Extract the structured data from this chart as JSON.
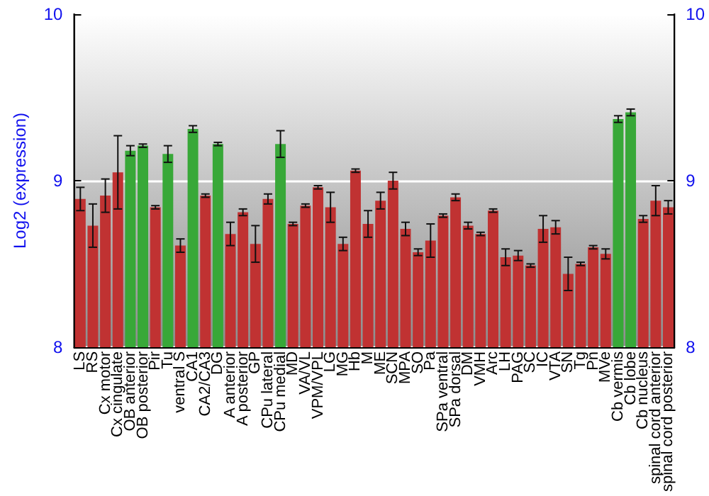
{
  "chart_data": {
    "type": "bar",
    "ylabel": "Log2 (expression)",
    "categories": [
      "LS",
      "RS",
      "Cx motor",
      "Cx cingulate",
      "OB anterior",
      "OB posterior",
      "Pir",
      "Tu",
      "ventral S",
      "CA1",
      "CA2/CA3",
      "DG",
      "A anterior",
      "A posterior",
      "GP",
      "CPu lateral",
      "CPu medial",
      "MD",
      "VA/VL",
      "VPM/VPL",
      "LG",
      "MG",
      "Hb",
      "M",
      "ME",
      "SCN",
      "MPA",
      "SO",
      "Pa",
      "SPa ventral",
      "SPa dorsal",
      "DM",
      "VMH",
      "Arc",
      "LH",
      "PAG",
      "SC",
      "IC",
      "VTA",
      "SN",
      "Tg",
      "Pn",
      "MVe",
      "Cb vermis",
      "Cb lobe",
      "Cb nucleus",
      "spinal cord anterior",
      "spinal cord posterior"
    ],
    "values": [
      8.89,
      8.73,
      8.91,
      9.05,
      9.18,
      9.21,
      8.84,
      9.16,
      8.61,
      9.31,
      8.91,
      9.22,
      8.68,
      8.81,
      8.62,
      8.89,
      9.22,
      8.74,
      8.85,
      8.96,
      8.84,
      8.62,
      9.06,
      8.74,
      8.88,
      9.0,
      8.71,
      8.57,
      8.64,
      8.79,
      8.9,
      8.73,
      8.68,
      8.82,
      8.54,
      8.55,
      8.49,
      8.71,
      8.72,
      8.44,
      8.5,
      8.6,
      8.56,
      9.37,
      9.41,
      8.77,
      8.88,
      8.84
    ],
    "errors": [
      0.07,
      0.13,
      0.1,
      0.22,
      0.03,
      0.01,
      0.01,
      0.05,
      0.04,
      0.02,
      0.01,
      0.01,
      0.07,
      0.02,
      0.11,
      0.03,
      0.08,
      0.01,
      0.01,
      0.01,
      0.09,
      0.04,
      0.01,
      0.08,
      0.05,
      0.05,
      0.04,
      0.02,
      0.1,
      0.01,
      0.02,
      0.02,
      0.01,
      0.01,
      0.05,
      0.03,
      0.01,
      0.08,
      0.04,
      0.1,
      0.01,
      0.01,
      0.03,
      0.02,
      0.02,
      0.02,
      0.09,
      0.04
    ],
    "colors": [
      "#c03232",
      "#c03232",
      "#c03232",
      "#c03232",
      "#38a838",
      "#38a838",
      "#c03232",
      "#38a838",
      "#c03232",
      "#38a838",
      "#c03232",
      "#38a838",
      "#c03232",
      "#c03232",
      "#c03232",
      "#c03232",
      "#38a838",
      "#c03232",
      "#c03232",
      "#c03232",
      "#c03232",
      "#c03232",
      "#c03232",
      "#c03232",
      "#c03232",
      "#c03232",
      "#c03232",
      "#c03232",
      "#c03232",
      "#c03232",
      "#c03232",
      "#c03232",
      "#c03232",
      "#c03232",
      "#c03232",
      "#c03232",
      "#c03232",
      "#c03232",
      "#c03232",
      "#c03232",
      "#c03232",
      "#c03232",
      "#c03232",
      "#38a838",
      "#38a838",
      "#c03232",
      "#c03232",
      "#c03232"
    ],
    "ylim": [
      8,
      10
    ],
    "yticks": [
      8,
      9,
      10
    ],
    "y2lim": [
      8,
      10
    ],
    "y2ticks": [
      8,
      9,
      10
    ],
    "grid": "y"
  }
}
